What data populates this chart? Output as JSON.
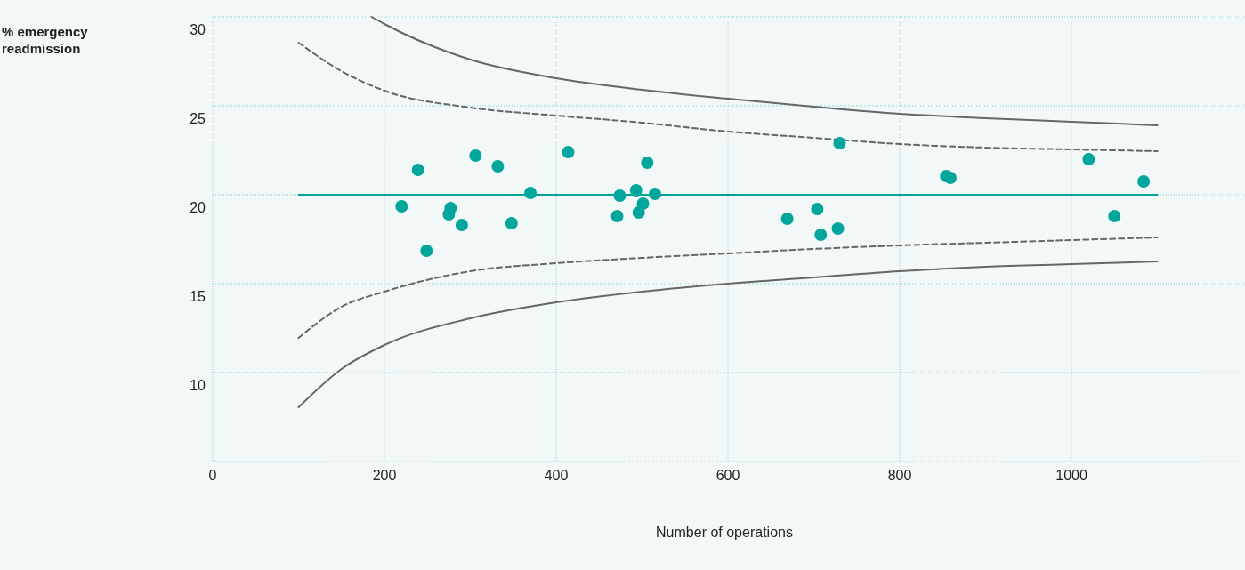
{
  "chart_data": {
    "type": "scatter",
    "xlabel": "Number of operations",
    "annotations": [
      "% emergency readmission"
    ],
    "xlim": [
      0,
      1202
    ],
    "ylim": [
      5,
      30
    ],
    "xticks": [
      0,
      200,
      400,
      600,
      800,
      1000
    ],
    "yticks": [
      10,
      15,
      20,
      25,
      30
    ],
    "grid": true,
    "series": [
      {
        "type": "line",
        "color": "#666666",
        "line_style": "solid",
        "marker": "none",
        "x": [
          185,
          200,
          300,
          400,
          500,
          600,
          700,
          800,
          900,
          1000,
          1100
        ],
        "values": [
          30,
          29.6,
          27.6,
          26.55,
          25.9,
          25.4,
          24.95,
          24.55,
          24.3,
          24.1,
          23.9
        ]
      },
      {
        "type": "line",
        "color": "#666666",
        "line_style": "dashed",
        "marker": "none",
        "x": [
          100,
          150,
          200,
          300,
          400,
          500,
          600,
          700,
          800,
          900,
          1000,
          1100
        ],
        "values": [
          28.55,
          26.95,
          25.85,
          24.9,
          24.45,
          24.05,
          23.55,
          23.2,
          22.85,
          22.65,
          22.55,
          22.45
        ]
      },
      {
        "type": "line",
        "color": "#00a59b",
        "line_style": "solid",
        "marker": "none",
        "x": [
          100,
          1100
        ],
        "values": [
          20,
          20
        ]
      },
      {
        "type": "line",
        "color": "#666666",
        "line_style": "dashed",
        "marker": "none",
        "x": [
          100,
          150,
          200,
          300,
          400,
          500,
          600,
          700,
          800,
          900,
          1000,
          1100
        ],
        "values": [
          11.95,
          13.7,
          14.55,
          15.7,
          16.15,
          16.45,
          16.7,
          16.95,
          17.15,
          17.3,
          17.45,
          17.6
        ]
      },
      {
        "type": "line",
        "color": "#666666",
        "line_style": "solid",
        "marker": "none",
        "x": [
          100,
          150,
          200,
          300,
          400,
          500,
          600,
          700,
          800,
          900,
          1000,
          1100
        ],
        "values": [
          8.05,
          10.2,
          11.55,
          13.05,
          13.95,
          14.55,
          15,
          15.35,
          15.7,
          15.95,
          16.1,
          16.25
        ]
      },
      {
        "marker": "circle",
        "color": "#00a59b",
        "x": [
          220,
          239,
          249,
          275,
          277,
          290,
          306,
          332,
          348,
          370,
          414,
          471,
          474,
          493,
          496,
          501,
          506,
          515,
          669,
          704,
          708,
          728,
          730,
          854,
          859,
          1020,
          1050,
          1084
        ],
        "values": [
          19.35,
          21.4,
          16.85,
          18.9,
          19.25,
          18.3,
          22.2,
          21.6,
          18.4,
          20.1,
          22.4,
          18.8,
          19.95,
          20.25,
          19,
          19.5,
          21.8,
          20.05,
          18.65,
          19.2,
          17.75,
          18.1,
          22.9,
          21.05,
          20.95,
          22,
          18.8,
          20.75
        ]
      }
    ]
  }
}
